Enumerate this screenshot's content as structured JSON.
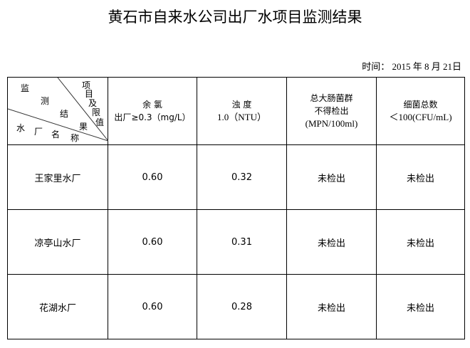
{
  "title": "黄石市自来水公司出厂水项目监测结果",
  "date": {
    "label": "时间：",
    "year": "2015",
    "y": "年",
    "month": "8",
    "m": "月",
    "day": "21",
    "d": "日"
  },
  "corner": {
    "chars_top": [
      "监",
      "测",
      "结"
    ],
    "chars_right": [
      "项",
      "目",
      "及",
      "限",
      "值",
      "果"
    ],
    "chars_bottom": [
      "水",
      "厂",
      "名",
      "称"
    ]
  },
  "columns": [
    {
      "line1": "余 氯",
      "line2": "出厂≥0.3（mg/L）"
    },
    {
      "line1": "浊 度",
      "line2": "1.0（NTU）"
    },
    {
      "line1": "总大肠菌群",
      "line2": "不得检出",
      "line3": "(MPN/100ml)"
    },
    {
      "line1": "细菌总数",
      "line2": "＜100(CFU/mL)"
    }
  ],
  "rows": [
    {
      "plant": "王家里水厂",
      "chlorine": "0.60",
      "turbidity": "0.32",
      "coliform": "未检出",
      "bacteria": "未检出"
    },
    {
      "plant": "凉亭山水厂",
      "chlorine": "0.60",
      "turbidity": "0.31",
      "coliform": "未检出",
      "bacteria": "未检出"
    },
    {
      "plant": "花湖水厂",
      "chlorine": "0.60",
      "turbidity": "0.28",
      "coliform": "未检出",
      "bacteria": "未检出"
    }
  ]
}
